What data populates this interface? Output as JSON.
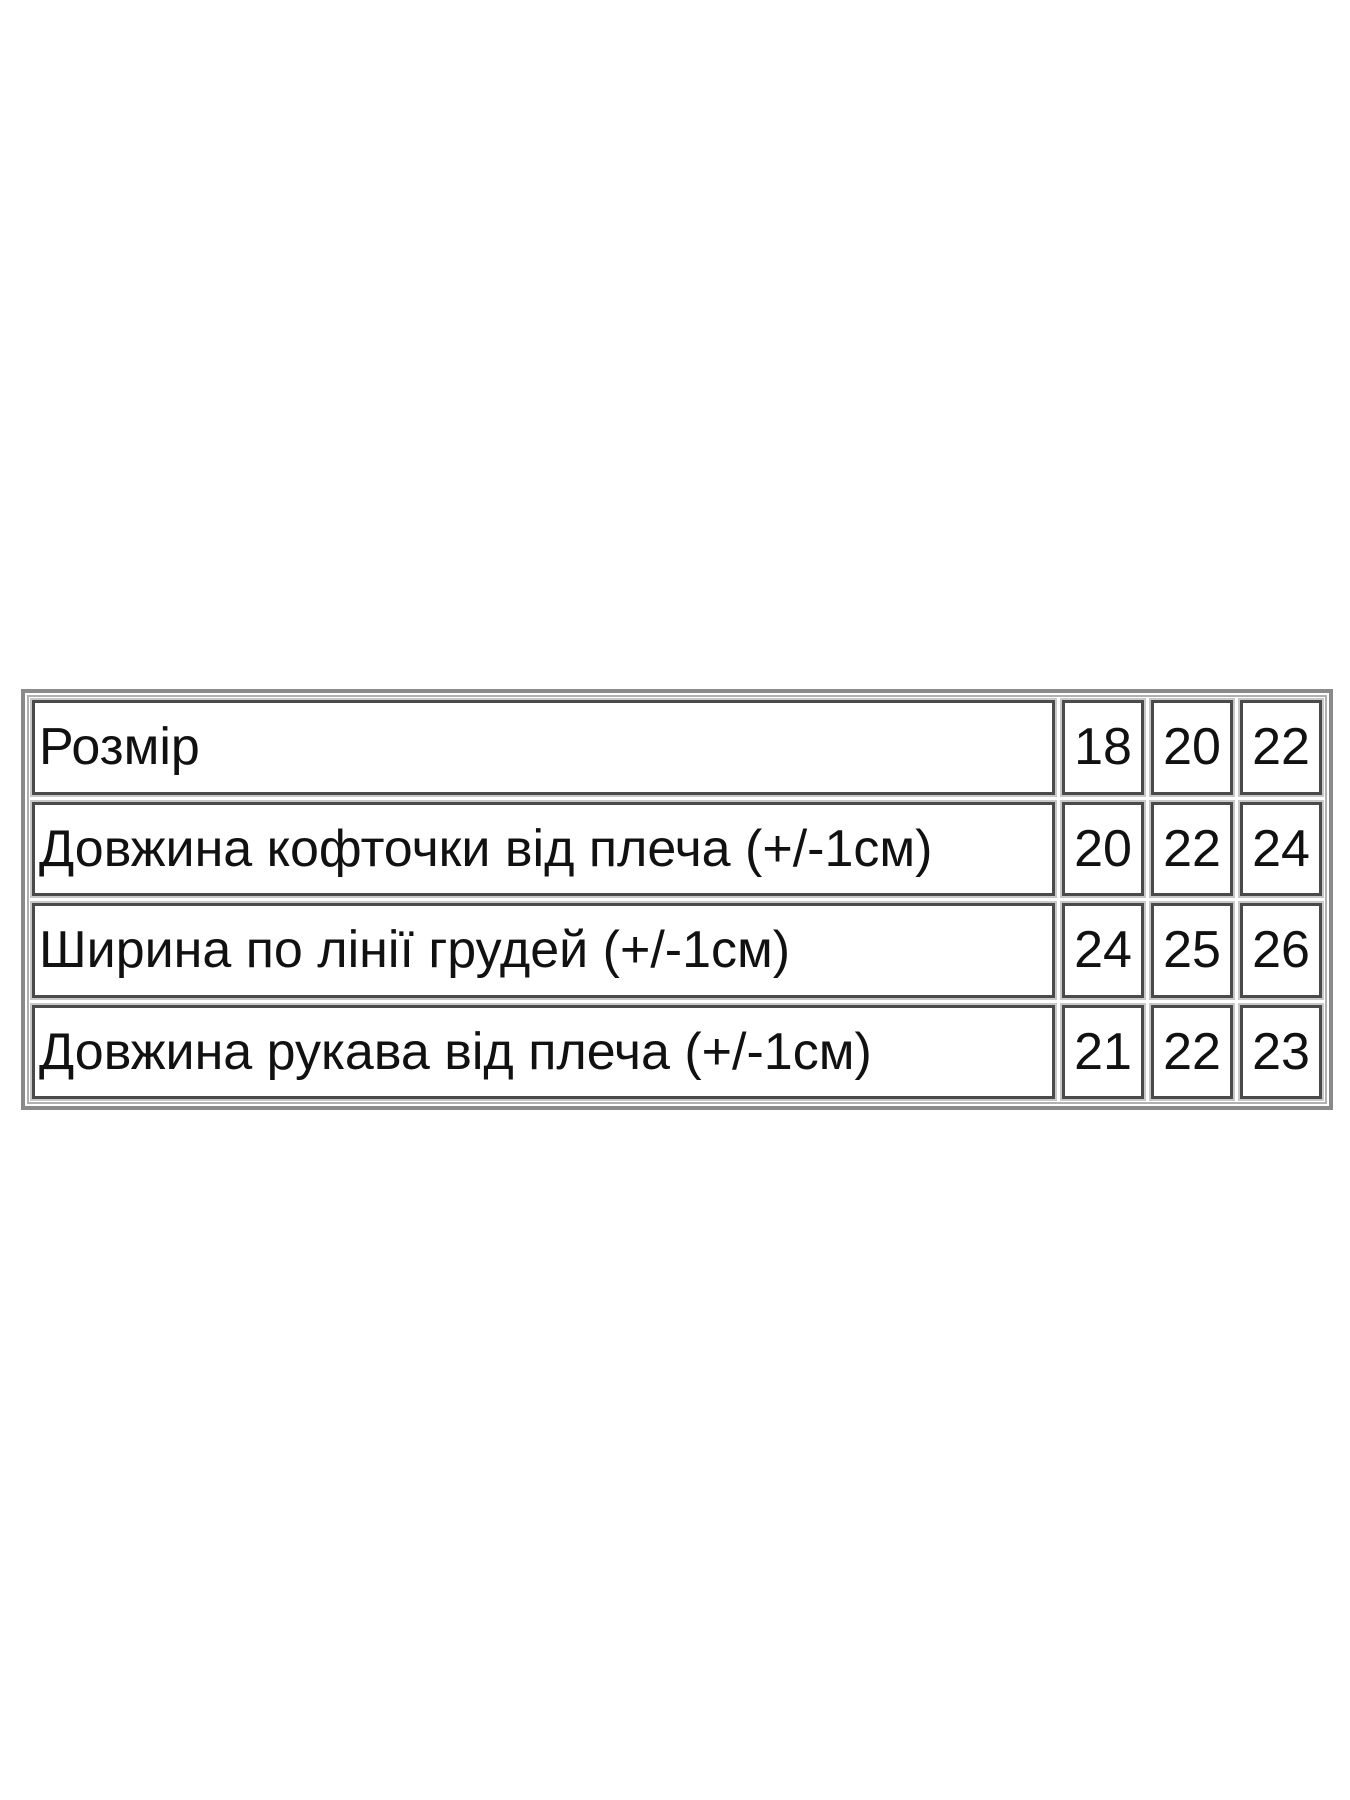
{
  "size_table": {
    "rows": [
      {
        "label": "Розмір",
        "values": [
          "18",
          "20",
          "22"
        ]
      },
      {
        "label": "Довжина кофточки від плеча (+/-1см)",
        "values": [
          "20",
          "22",
          "24"
        ]
      },
      {
        "label": "Ширина по лінії грудей (+/-1см)",
        "values": [
          "24",
          "25",
          "26"
        ]
      },
      {
        "label": "Довжина рукава від плеча (+/-1см)",
        "values": [
          "21",
          "22",
          "23"
        ]
      }
    ]
  }
}
